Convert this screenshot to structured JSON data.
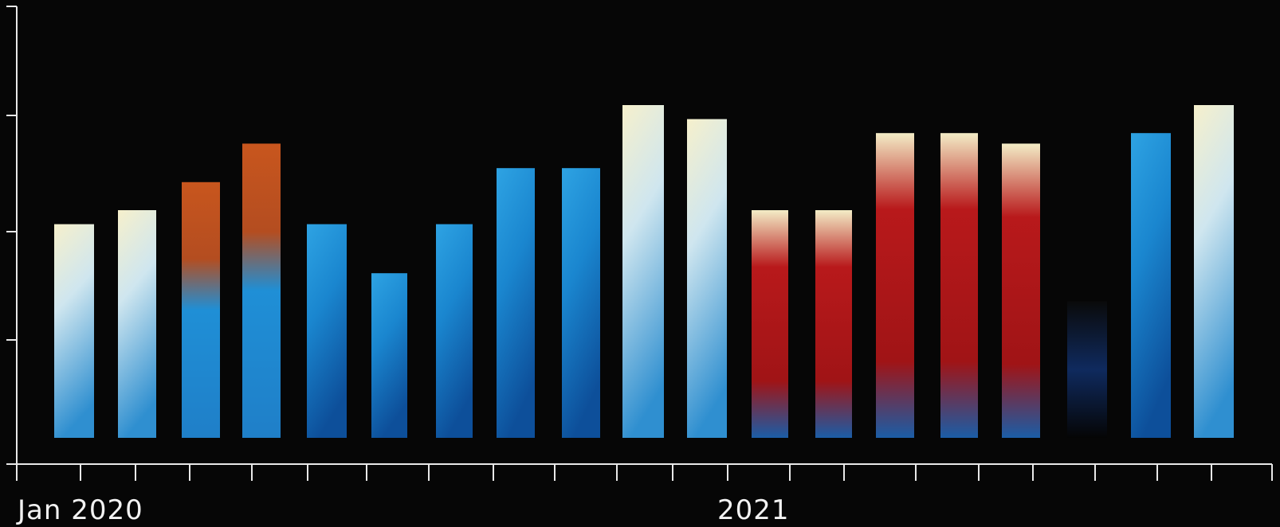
{
  "chart_data": {
    "type": "bar",
    "title": "",
    "xlabel": "",
    "ylabel": "",
    "x_tick_labels": [
      "Jan 2020",
      "2021"
    ],
    "ylim": [
      0,
      100
    ],
    "grid": false,
    "legend": "none",
    "bar_fill": "photo-collage",
    "series": [
      {
        "values": [
          61,
          65,
          73,
          84,
          61,
          47,
          61,
          77,
          77,
          95,
          91,
          65,
          65,
          87,
          87,
          84,
          39,
          87,
          95
        ]
      }
    ]
  },
  "colors": {
    "background": "#060606",
    "axis": "#e8e8e8",
    "text": "#f2f2f2",
    "fill_blue": "#1f8fd6",
    "fill_cream": "#f2ecc4",
    "fill_red": "#b4181a",
    "fill_orange": "#c45a22"
  }
}
